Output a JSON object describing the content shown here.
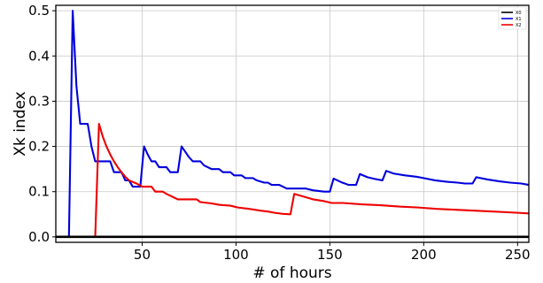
{
  "chart_data": {
    "type": "line",
    "title": "",
    "xlabel": "# of hours",
    "ylabel": "Xk index",
    "xlim": [
      4,
      256
    ],
    "ylim": [
      -0.012,
      0.512
    ],
    "x_ticks": [
      50,
      100,
      150,
      200,
      250
    ],
    "y_ticks": [
      0.0,
      0.1,
      0.2,
      0.3,
      0.4,
      0.5
    ],
    "x_tick_labels": [
      "50",
      "100",
      "150",
      "200",
      "250"
    ],
    "y_tick_labels": [
      "0.0",
      "0.1",
      "0.2",
      "0.3",
      "0.4",
      "0.5"
    ],
    "grid": true,
    "legend_position": "top-right",
    "series": [
      {
        "name": "X0",
        "color": "#000000",
        "points": [
          [
            4,
            0
          ],
          [
            256,
            0
          ]
        ]
      },
      {
        "name": "X1",
        "color": "#0000dd",
        "points": [
          [
            4,
            0
          ],
          [
            11,
            0
          ],
          [
            13,
            0.5
          ],
          [
            15,
            0.333
          ],
          [
            17,
            0.25
          ],
          [
            21,
            0.25
          ],
          [
            23,
            0.2
          ],
          [
            25,
            0.167
          ],
          [
            33,
            0.167
          ],
          [
            35,
            0.143
          ],
          [
            39,
            0.143
          ],
          [
            41,
            0.125
          ],
          [
            43,
            0.125
          ],
          [
            45,
            0.111
          ],
          [
            49,
            0.111
          ],
          [
            51,
            0.2
          ],
          [
            53,
            0.182
          ],
          [
            55,
            0.167
          ],
          [
            57,
            0.167
          ],
          [
            59,
            0.154
          ],
          [
            63,
            0.154
          ],
          [
            65,
            0.143
          ],
          [
            69,
            0.143
          ],
          [
            71,
            0.2
          ],
          [
            73,
            0.188
          ],
          [
            75,
            0.176
          ],
          [
            77,
            0.167
          ],
          [
            81,
            0.167
          ],
          [
            83,
            0.158
          ],
          [
            87,
            0.15
          ],
          [
            91,
            0.15
          ],
          [
            93,
            0.143
          ],
          [
            97,
            0.143
          ],
          [
            99,
            0.136
          ],
          [
            103,
            0.136
          ],
          [
            105,
            0.13
          ],
          [
            109,
            0.13
          ],
          [
            111,
            0.125
          ],
          [
            115,
            0.12
          ],
          [
            117,
            0.12
          ],
          [
            119,
            0.115
          ],
          [
            123,
            0.115
          ],
          [
            125,
            0.111
          ],
          [
            127,
            0.107
          ],
          [
            137,
            0.107
          ],
          [
            141,
            0.103
          ],
          [
            147,
            0.1
          ],
          [
            150,
            0.1
          ],
          [
            152,
            0.129
          ],
          [
            156,
            0.121
          ],
          [
            160,
            0.115
          ],
          [
            164,
            0.115
          ],
          [
            166,
            0.139
          ],
          [
            170,
            0.132
          ],
          [
            174,
            0.128
          ],
          [
            178,
            0.125
          ],
          [
            180,
            0.146
          ],
          [
            184,
            0.14
          ],
          [
            190,
            0.136
          ],
          [
            196,
            0.133
          ],
          [
            200,
            0.13
          ],
          [
            206,
            0.125
          ],
          [
            212,
            0.122
          ],
          [
            218,
            0.12
          ],
          [
            222,
            0.118
          ],
          [
            226,
            0.118
          ],
          [
            228,
            0.132
          ],
          [
            234,
            0.127
          ],
          [
            240,
            0.123
          ],
          [
            246,
            0.12
          ],
          [
            252,
            0.118
          ],
          [
            256,
            0.115
          ]
        ]
      },
      {
        "name": "X2",
        "color": "#ee0000",
        "points": [
          [
            4,
            0
          ],
          [
            25,
            0
          ],
          [
            27,
            0.25
          ],
          [
            29,
            0.222
          ],
          [
            31,
            0.2
          ],
          [
            33,
            0.182
          ],
          [
            35,
            0.167
          ],
          [
            37,
            0.154
          ],
          [
            39,
            0.143
          ],
          [
            41,
            0.133
          ],
          [
            43,
            0.125
          ],
          [
            47,
            0.118
          ],
          [
            50,
            0.111
          ],
          [
            55,
            0.111
          ],
          [
            57,
            0.1
          ],
          [
            61,
            0.1
          ],
          [
            63,
            0.095
          ],
          [
            65,
            0.091
          ],
          [
            67,
            0.087
          ],
          [
            69,
            0.083
          ],
          [
            79,
            0.083
          ],
          [
            81,
            0.077
          ],
          [
            87,
            0.074
          ],
          [
            91,
            0.071
          ],
          [
            97,
            0.069
          ],
          [
            101,
            0.065
          ],
          [
            107,
            0.062
          ],
          [
            113,
            0.058
          ],
          [
            117,
            0.056
          ],
          [
            121,
            0.053
          ],
          [
            125,
            0.051
          ],
          [
            129,
            0.05
          ],
          [
            131,
            0.095
          ],
          [
            137,
            0.088
          ],
          [
            141,
            0.083
          ],
          [
            147,
            0.079
          ],
          [
            151,
            0.075
          ],
          [
            157,
            0.075
          ],
          [
            167,
            0.072
          ],
          [
            177,
            0.07
          ],
          [
            187,
            0.067
          ],
          [
            197,
            0.065
          ],
          [
            207,
            0.062
          ],
          [
            217,
            0.06
          ],
          [
            227,
            0.058
          ],
          [
            237,
            0.056
          ],
          [
            247,
            0.054
          ],
          [
            256,
            0.052
          ]
        ]
      }
    ]
  }
}
